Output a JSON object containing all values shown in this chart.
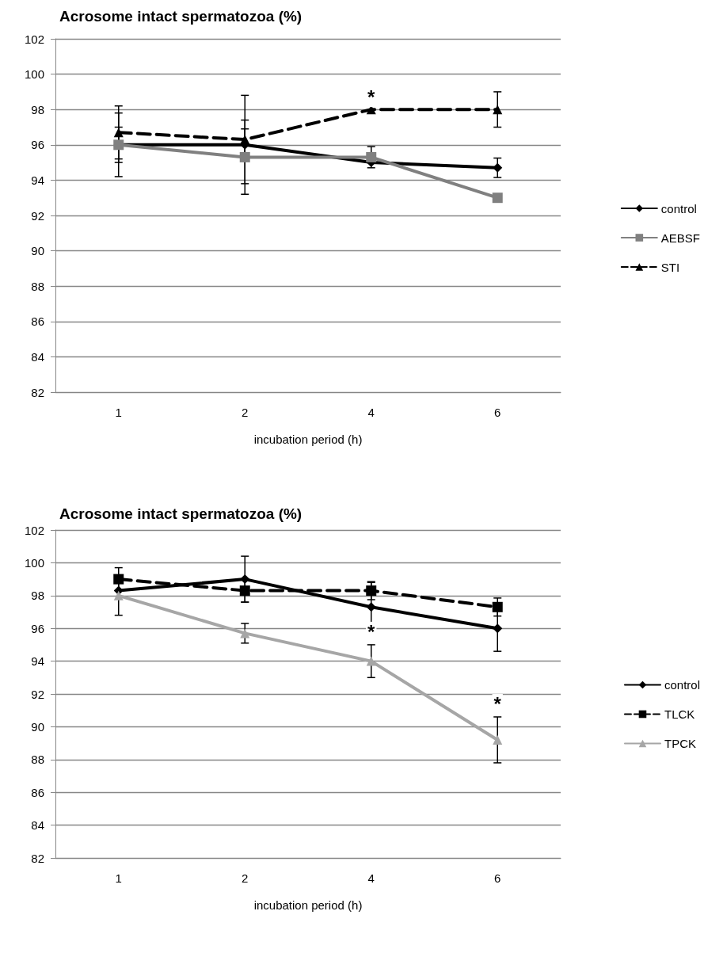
{
  "chart_data": [
    {
      "type": "line",
      "title": "Acrosome intact spermatozoa (%)",
      "xlabel": "incubation period (h)",
      "categories": [
        "1",
        "2",
        "4",
        "6"
      ],
      "ylim": [
        82,
        102
      ],
      "yticks": [
        82,
        84,
        86,
        88,
        90,
        92,
        94,
        96,
        98,
        100,
        102
      ],
      "grid": "y",
      "legend": "right",
      "series": [
        {
          "name": "control",
          "color": "#000000",
          "marker": "diamond",
          "line_style": "solid",
          "values": [
            96,
            96,
            95,
            94.7
          ],
          "errors": [
            1,
            0.9,
            null,
            0.55
          ]
        },
        {
          "name": "AEBSF",
          "color": "#808080",
          "marker": "square",
          "line_style": "solid",
          "values": [
            96,
            95.3,
            95.3,
            93
          ],
          "errors": [
            1.8,
            2.1,
            0.6,
            null
          ]
        },
        {
          "name": "STI",
          "color": "#000000",
          "marker": "triangle",
          "line_style": "dashed",
          "values": [
            96.7,
            96.3,
            98,
            98
          ],
          "errors": [
            1.5,
            2.5,
            null,
            1
          ]
        }
      ],
      "annotations": [
        {
          "text": "*",
          "x": "4",
          "y": 98
        }
      ]
    },
    {
      "type": "line",
      "title": "Acrosome intact spermatozoa (%)",
      "xlabel": "incubation period (h)",
      "categories": [
        "1",
        "2",
        "4",
        "6"
      ],
      "ylim": [
        82,
        102
      ],
      "yticks": [
        82,
        84,
        86,
        88,
        90,
        92,
        94,
        96,
        98,
        100,
        102
      ],
      "grid": "y",
      "legend": "right",
      "series": [
        {
          "name": "control",
          "color": "#000000",
          "marker": "diamond",
          "line_style": "solid",
          "values": [
            98.3,
            99,
            97.3,
            96
          ],
          "errors": [
            null,
            1.4,
            1.5,
            1.4
          ]
        },
        {
          "name": "TLCK",
          "color": "#000000",
          "marker": "square",
          "line_style": "dashed",
          "values": [
            99,
            98.3,
            98.3,
            97.3
          ],
          "errors": [
            0.7,
            0.7,
            0.55,
            0.55
          ]
        },
        {
          "name": "TPCK",
          "color": "#a6a6a6",
          "marker": "triangle",
          "line_style": "solid",
          "values": [
            98,
            95.7,
            94,
            89.2
          ],
          "errors": [
            1.2,
            0.6,
            1,
            1.4
          ]
        }
      ],
      "annotations": [
        {
          "text": "*",
          "x": "4",
          "y": 94
        },
        {
          "text": "*",
          "x": "6",
          "y": 89.2
        }
      ]
    }
  ]
}
